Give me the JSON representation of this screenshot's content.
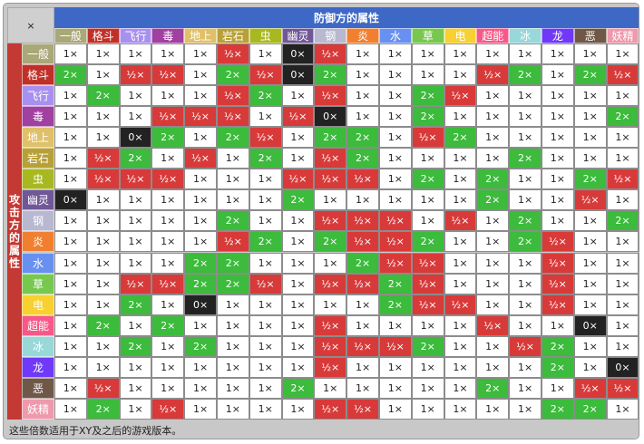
{
  "corner_label": "×",
  "defense_title": "防御方的属性",
  "attack_title": "攻击方的属性",
  "footer_note": "这些倍数适用于XY及之后的游戏版本。",
  "types": [
    {
      "name": "一般",
      "color": "#a8a878"
    },
    {
      "name": "格斗",
      "color": "#c03028"
    },
    {
      "name": "飞行",
      "color": "#a890f0"
    },
    {
      "name": "毒",
      "color": "#a040a0"
    },
    {
      "name": "地上",
      "color": "#e0c068"
    },
    {
      "name": "岩石",
      "color": "#b8a038"
    },
    {
      "name": "虫",
      "color": "#a8b820"
    },
    {
      "name": "幽灵",
      "color": "#705898"
    },
    {
      "name": "钢",
      "color": "#b8b8d0"
    },
    {
      "name": "炎",
      "color": "#f08030"
    },
    {
      "name": "水",
      "color": "#6890f0"
    },
    {
      "name": "草",
      "color": "#78c850"
    },
    {
      "name": "电",
      "color": "#f8d030"
    },
    {
      "name": "超能",
      "color": "#f85888"
    },
    {
      "name": "冰",
      "color": "#98d8d8"
    },
    {
      "name": "龙",
      "color": "#7038f8"
    },
    {
      "name": "恶",
      "color": "#705848"
    },
    {
      "name": "妖精",
      "color": "#ee99ac"
    }
  ],
  "value_labels": {
    "1": "1×",
    "2": "2×",
    "0.5": "½×",
    "0": "0×"
  },
  "value_colors": {
    "1": "#ffffff",
    "2": "#3cbb3c",
    "0.5": "#d83a3a",
    "0": "#222222"
  },
  "matrix": [
    [
      1,
      1,
      1,
      1,
      1,
      0.5,
      1,
      0,
      0.5,
      1,
      1,
      1,
      1,
      1,
      1,
      1,
      1,
      1
    ],
    [
      2,
      1,
      0.5,
      0.5,
      1,
      2,
      0.5,
      0,
      2,
      1,
      1,
      1,
      1,
      0.5,
      2,
      1,
      2,
      0.5
    ],
    [
      1,
      2,
      1,
      1,
      1,
      0.5,
      2,
      1,
      0.5,
      1,
      1,
      2,
      0.5,
      1,
      1,
      1,
      1,
      1
    ],
    [
      1,
      1,
      1,
      0.5,
      0.5,
      0.5,
      1,
      0.5,
      0,
      1,
      1,
      2,
      1,
      1,
      1,
      1,
      1,
      2
    ],
    [
      1,
      1,
      0,
      2,
      1,
      2,
      0.5,
      1,
      2,
      2,
      1,
      0.5,
      2,
      1,
      1,
      1,
      1,
      1
    ],
    [
      1,
      0.5,
      2,
      1,
      0.5,
      1,
      2,
      1,
      0.5,
      2,
      1,
      1,
      1,
      1,
      2,
      1,
      1,
      1
    ],
    [
      1,
      0.5,
      0.5,
      0.5,
      1,
      1,
      1,
      0.5,
      0.5,
      0.5,
      1,
      2,
      1,
      2,
      1,
      1,
      2,
      0.5
    ],
    [
      0,
      1,
      1,
      1,
      1,
      1,
      1,
      2,
      1,
      1,
      1,
      1,
      1,
      2,
      1,
      1,
      0.5,
      1
    ],
    [
      1,
      1,
      1,
      1,
      1,
      2,
      1,
      1,
      0.5,
      0.5,
      0.5,
      1,
      0.5,
      1,
      2,
      1,
      1,
      2
    ],
    [
      1,
      1,
      1,
      1,
      1,
      0.5,
      2,
      1,
      2,
      0.5,
      0.5,
      2,
      1,
      1,
      2,
      0.5,
      1,
      1
    ],
    [
      1,
      1,
      1,
      1,
      2,
      2,
      1,
      1,
      1,
      2,
      0.5,
      0.5,
      1,
      1,
      1,
      0.5,
      1,
      1
    ],
    [
      1,
      1,
      0.5,
      0.5,
      2,
      2,
      0.5,
      1,
      0.5,
      0.5,
      2,
      0.5,
      1,
      1,
      1,
      0.5,
      1,
      1
    ],
    [
      1,
      1,
      2,
      1,
      0,
      1,
      1,
      1,
      1,
      1,
      2,
      0.5,
      0.5,
      1,
      1,
      0.5,
      1,
      1
    ],
    [
      1,
      2,
      1,
      2,
      1,
      1,
      1,
      1,
      0.5,
      1,
      1,
      1,
      1,
      0.5,
      1,
      1,
      0,
      1
    ],
    [
      1,
      1,
      2,
      1,
      2,
      1,
      1,
      1,
      0.5,
      0.5,
      0.5,
      2,
      1,
      1,
      0.5,
      2,
      1,
      1
    ],
    [
      1,
      1,
      1,
      1,
      1,
      1,
      1,
      1,
      0.5,
      1,
      1,
      1,
      1,
      1,
      1,
      2,
      1,
      0
    ],
    [
      1,
      0.5,
      1,
      1,
      1,
      1,
      1,
      2,
      1,
      1,
      1,
      1,
      1,
      2,
      1,
      1,
      0.5,
      0.5
    ],
    [
      1,
      2,
      1,
      0.5,
      1,
      1,
      1,
      1,
      0.5,
      0.5,
      1,
      1,
      1,
      1,
      1,
      2,
      2,
      1
    ]
  ]
}
